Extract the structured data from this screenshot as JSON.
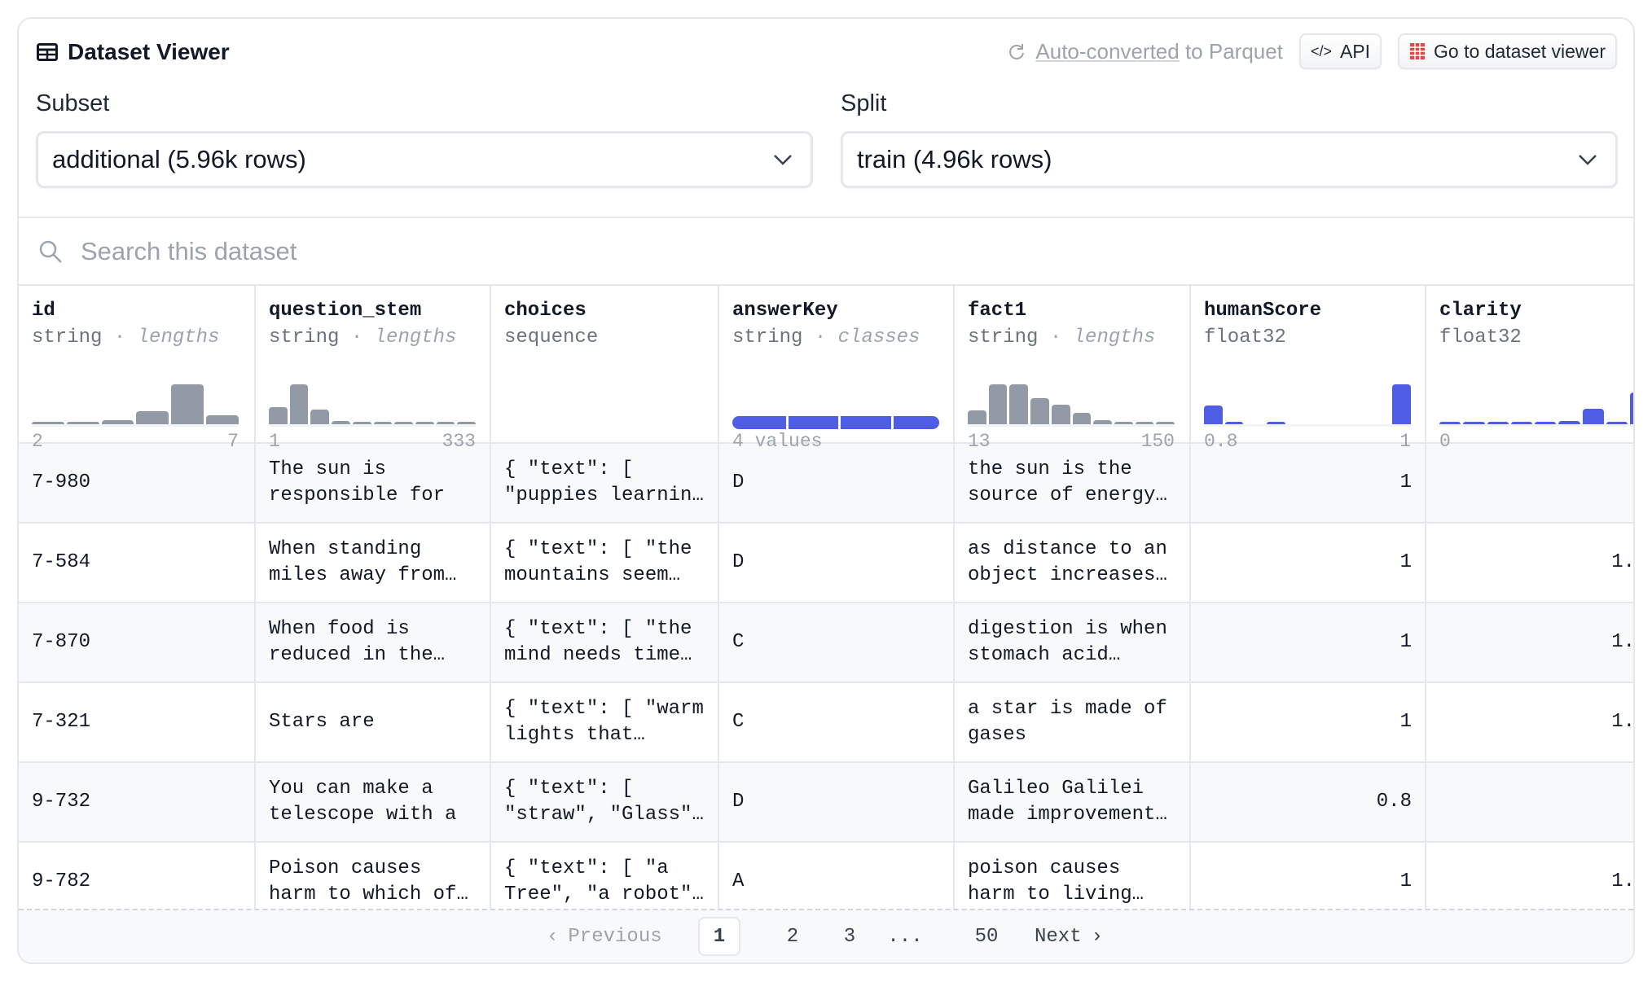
{
  "header": {
    "title": "Dataset Viewer",
    "parquet_link": "Auto-converted",
    "parquet_rest": " to Parquet",
    "api_label": "API",
    "viewer_label": "Go to dataset viewer"
  },
  "subset": {
    "label": "Subset",
    "value": "additional (5.96k rows)"
  },
  "split": {
    "label": "Split",
    "value": "train (4.96k rows)"
  },
  "search": {
    "placeholder": "Search this dataset"
  },
  "colors": {
    "gray_bar": "#929aa6",
    "blue_bar": "#4f5de4",
    "brand_red": "#ef4444"
  },
  "columns": [
    {
      "name": "id",
      "type": "string",
      "stat": "lengths",
      "hist": [
        5,
        9,
        17,
        52,
        155,
        35
      ],
      "color": "gray",
      "min": "2",
      "max": "7"
    },
    {
      "name": "question_stem",
      "type": "string",
      "stat": "lengths",
      "hist": [
        65,
        155,
        58,
        14,
        3,
        3,
        3,
        3,
        3,
        3
      ],
      "color": "gray",
      "min": "1",
      "max": "333"
    },
    {
      "name": "choices",
      "type": "sequence"
    },
    {
      "name": "answerKey",
      "type": "string",
      "stat": "classes",
      "classes": [
        0.27,
        0.25,
        0.25,
        0.23
      ],
      "min": "4 values"
    },
    {
      "name": "fact1",
      "type": "string",
      "stat": "lengths",
      "hist": [
        55,
        155,
        155,
        102,
        75,
        45,
        15,
        5,
        3,
        3
      ],
      "color": "gray",
      "min": "13",
      "max": "150"
    },
    {
      "name": "humanScore",
      "type": "float32",
      "hist": [
        73,
        3,
        0,
        3,
        0,
        0,
        0,
        0,
        0,
        155
      ],
      "color": "blue",
      "min": "0.8",
      "max": "1"
    },
    {
      "name": "clarity",
      "type": "float32",
      "hist": [
        3,
        3,
        3,
        3,
        5,
        13,
        60,
        5,
        122,
        155
      ],
      "color": "blue",
      "min": "0",
      "max": ""
    }
  ],
  "rows": [
    [
      "7-980",
      "The sun is\nresponsible for",
      "{ \"text\": [\n\"puppies learnin…",
      "D",
      "the sun is the\nsource of energy…",
      "1",
      ""
    ],
    [
      "7-584",
      "When standing\nmiles away from…",
      "{ \"text\": [ \"the\nmountains seem…",
      "D",
      "as distance to an\nobject increases…",
      "1",
      "1."
    ],
    [
      "7-870",
      "When food is\nreduced in the…",
      "{ \"text\": [ \"the\nmind needs time…",
      "C",
      "digestion is when\nstomach acid…",
      "1",
      "1."
    ],
    [
      "7-321",
      "Stars are",
      "{ \"text\": [ \"warm\nlights that…",
      "C",
      "a star is made of\ngases",
      "1",
      "1."
    ],
    [
      "9-732",
      "You can make a\ntelescope with a",
      "{ \"text\": [\n\"straw\", \"Glass\"…",
      "D",
      "Galileo Galilei\nmade improvement…",
      "0.8",
      ""
    ],
    [
      "9-782",
      "Poison causes\nharm to which of…",
      "{ \"text\": [ \"a\nTree\", \"a robot\"…",
      "A",
      "poison causes\nharm to living…",
      "1",
      "1."
    ]
  ],
  "pagination": {
    "previous": "Previous",
    "pages": [
      "1",
      "2",
      "3",
      "...",
      "50"
    ],
    "current": "1",
    "next": "Next"
  }
}
